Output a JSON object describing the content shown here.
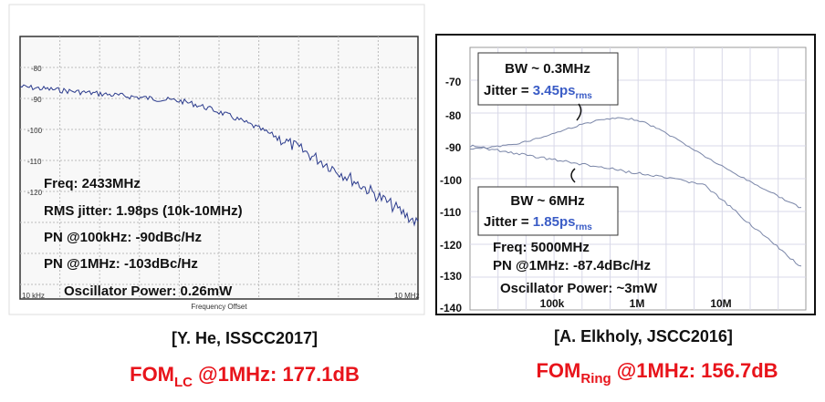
{
  "left_panel": {
    "y_ticks": [
      "-80",
      "-90",
      "-100",
      "-110",
      "-120"
    ],
    "x_labels": [
      "10 kHz",
      "10 MHz"
    ],
    "x_axis_title": "Frequency Offset",
    "annotations": [
      "Freq: 2433MHz",
      "RMS jitter: 1.98ps (10k-10MHz)",
      "PN @100kHz: -90dBc/Hz",
      "PN @1MHz: -103dBc/Hz",
      "Oscillator Power: 0.26mW"
    ],
    "citation": "[Y. He, ISSCC2017]",
    "fom": {
      "prefix": "FOM",
      "subscript": "LC",
      "suffix": " @1MHz: 177.1dB"
    }
  },
  "right_panel": {
    "y_ticks": [
      "-70",
      "-80",
      "-90",
      "-100",
      "-110",
      "-120",
      "-130",
      "-140"
    ],
    "x_labels": [
      "100k",
      "1M",
      "10M"
    ],
    "box_1": {
      "bw": "BW ~ 0.3MHz",
      "jitter_label": "Jitter = ",
      "jitter_value": "3.45ps",
      "jitter_subscript": "rms"
    },
    "box_2": {
      "bw": "BW ~ 6MHz",
      "jitter_label": "Jitter = ",
      "jitter_value": "1.85ps",
      "jitter_subscript": "rms"
    },
    "annotations": [
      "Freq: 5000MHz",
      "PN @1MHz: -87.4dBc/Hz",
      "Oscillator Power: ~3mW"
    ],
    "citation": "[A. Elkholy, JSCC2016]",
    "fom": {
      "prefix": "FOM",
      "subscript": "Ring",
      "suffix": " @1MHz: 156.7dB"
    }
  }
}
